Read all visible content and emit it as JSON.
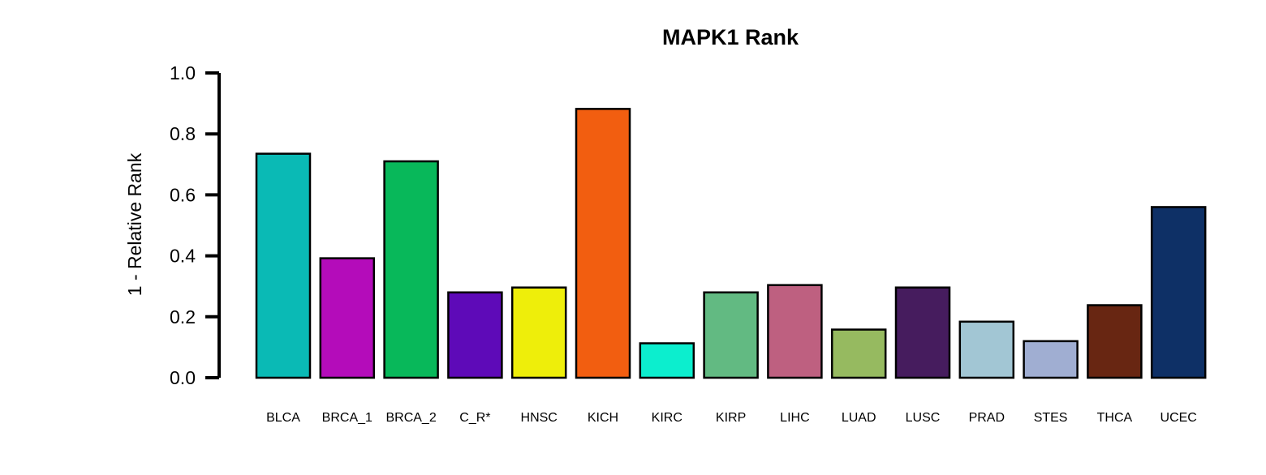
{
  "chart_data": {
    "type": "bar",
    "title": "MAPK1 Rank",
    "xlabel": "",
    "ylabel": "1 - Relative Rank",
    "ylim": [
      0,
      1
    ],
    "yticks": [
      "0.0",
      "0.2",
      "0.4",
      "0.6",
      "0.8",
      "1.0"
    ],
    "grid": false,
    "legend": "none",
    "categories": [
      "BLCA",
      "BRCA_1",
      "BRCA_2",
      "C_R*",
      "HNSC",
      "KICH",
      "KIRC",
      "KIRP",
      "LIHC",
      "LUAD",
      "LUSC",
      "PRAD",
      "STES",
      "THCA",
      "UCEC"
    ],
    "values": [
      0.735,
      0.392,
      0.71,
      0.28,
      0.296,
      0.882,
      0.113,
      0.28,
      0.304,
      0.158,
      0.296,
      0.184,
      0.12,
      0.238,
      0.56
    ],
    "colors": [
      "#0ABAB5",
      "#B40CBA",
      "#08B85A",
      "#5E0AB8",
      "#EEEE0A",
      "#F25E10",
      "#0CEECE",
      "#62BA82",
      "#BE6080",
      "#96BA60",
      "#461C5E",
      "#A2C6D4",
      "#A0AED2",
      "#682612",
      "#0E3066"
    ]
  }
}
